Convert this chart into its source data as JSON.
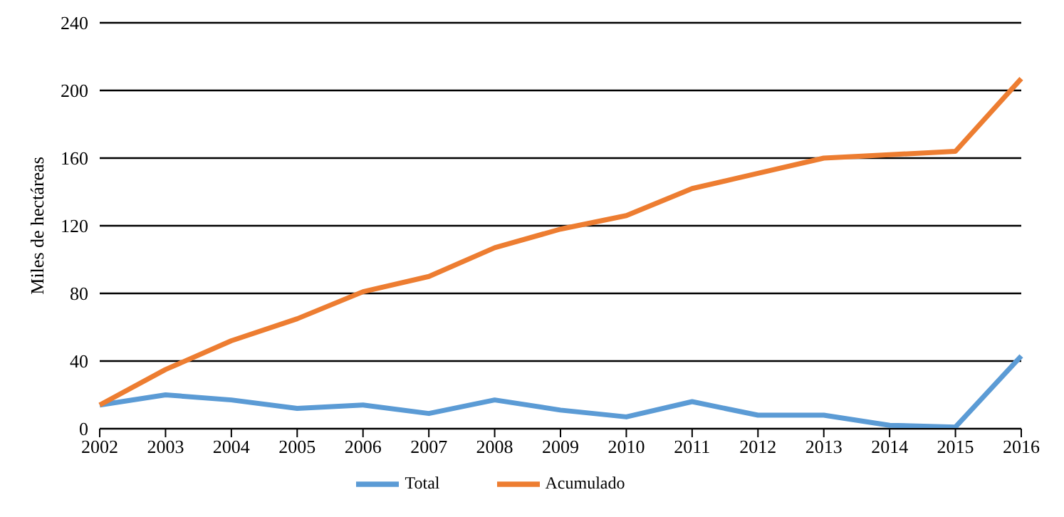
{
  "chart_data": {
    "type": "line",
    "ylabel": "Miles de hectáreas",
    "categories": [
      "2002",
      "2003",
      "2004",
      "2005",
      "2006",
      "2007",
      "2008",
      "2009",
      "2010",
      "2011",
      "2012",
      "2013",
      "2014",
      "2015",
      "2016"
    ],
    "series": [
      {
        "name": "Total",
        "color": "#5b9bd5",
        "values": [
          14,
          20,
          17,
          12,
          14,
          9,
          17,
          11,
          7,
          16,
          8,
          8,
          2,
          1,
          43
        ]
      },
      {
        "name": "Acumulado",
        "color": "#ed7d31",
        "values": [
          14,
          35,
          52,
          65,
          81,
          90,
          107,
          118,
          126,
          142,
          151,
          160,
          162,
          164,
          207
        ]
      }
    ],
    "ylim": [
      0,
      240
    ],
    "yticks": [
      0,
      40,
      80,
      120,
      160,
      200,
      240
    ],
    "grid": "y",
    "legend": "bottom",
    "marker": "none",
    "line_style": "solid"
  }
}
